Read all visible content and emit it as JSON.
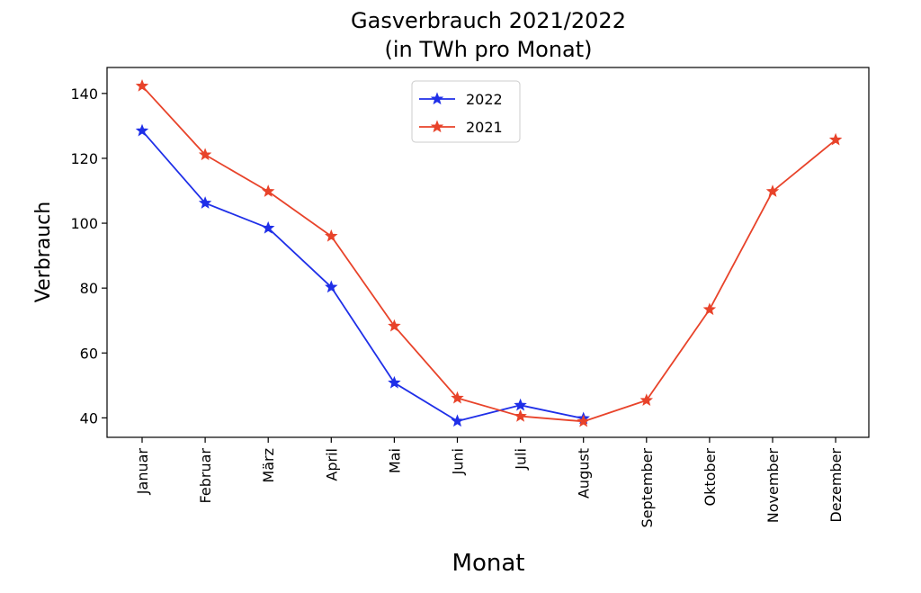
{
  "chart_data": {
    "type": "line",
    "title": "Gasverbrauch 2021/2022",
    "subtitle": "(in TWh pro Monat)",
    "xlabel": "Monat",
    "ylabel": "Verbrauch",
    "categories": [
      "Januar",
      "Februar",
      "März",
      "April",
      "Mai",
      "Juni",
      "Juli",
      "August",
      "September",
      "Oktober",
      "November",
      "Dezember"
    ],
    "ylim": [
      34,
      148
    ],
    "yticks": [
      40,
      60,
      80,
      100,
      120,
      140
    ],
    "grid": false,
    "legend_position": "top-center",
    "marker": "star",
    "series": [
      {
        "name": "2022",
        "color": "#1f2fe8",
        "values": [
          128.5,
          106.2,
          98.5,
          80.3,
          50.8,
          39.0,
          43.9,
          39.8,
          null,
          null,
          null,
          null
        ]
      },
      {
        "name": "2021",
        "color": "#e8432a",
        "values": [
          142.3,
          121.1,
          109.8,
          96.0,
          68.3,
          46.1,
          40.5,
          38.9,
          45.4,
          73.4,
          109.8,
          125.7
        ]
      }
    ]
  }
}
